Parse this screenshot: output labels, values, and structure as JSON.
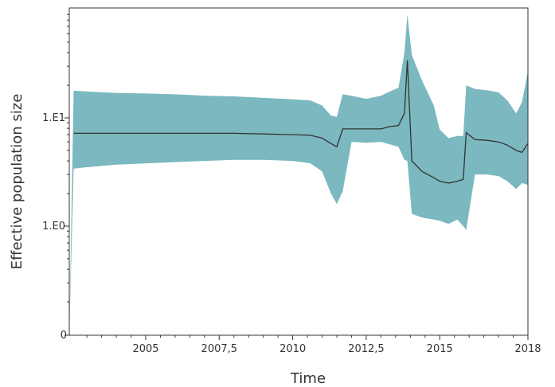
{
  "chart_data": {
    "type": "area",
    "title": "",
    "xlabel": "Time",
    "ylabel": "Effective population size",
    "xlim": [
      2002.4,
      2018
    ],
    "y_scale": "log",
    "y_ticks": [
      {
        "value": 1,
        "label": "1.E0"
      },
      {
        "value": 10,
        "label": "1.E1"
      }
    ],
    "y_zero_label": "0",
    "x_ticks": [
      {
        "value": 2005,
        "label": "2005"
      },
      {
        "value": 2007.5,
        "label": "2007,5"
      },
      {
        "value": 2010,
        "label": "2010"
      },
      {
        "value": 2012.5,
        "label": "2012,5"
      },
      {
        "value": 2015,
        "label": "2015"
      },
      {
        "value": 2018,
        "label": "2018"
      }
    ],
    "grid": false,
    "colors": {
      "band": "#7bb8bf",
      "median": "#333333",
      "axis": "#333333"
    },
    "series": [
      {
        "values": {
          "x": [
            2002.4,
            2002.55,
            2003,
            2004,
            2005,
            2006,
            2007,
            2008,
            2009,
            2010,
            2010.6,
            2011,
            2011.3,
            2011.5,
            2011.7,
            2012,
            2012.5,
            2013,
            2013.3,
            2013.6,
            2013.8,
            2013.9,
            2014.05,
            2014.4,
            2014.8,
            2015,
            2015.3,
            2015.6,
            2015.8,
            2015.9,
            2016.2,
            2016.6,
            2017,
            2017.3,
            2017.6,
            2017.8,
            2018
          ],
          "median": [
            7.2,
            7.2,
            7.2,
            7.2,
            7.2,
            7.2,
            7.2,
            7.2,
            7.1,
            7.0,
            6.9,
            6.5,
            5.8,
            5.4,
            7.9,
            7.9,
            7.9,
            7.9,
            8.3,
            8.5,
            11,
            34,
            4.0,
            3.2,
            2.8,
            2.6,
            2.5,
            2.6,
            2.7,
            7.3,
            6.3,
            6.2,
            6.0,
            5.6,
            5.0,
            4.8,
            5.8
          ],
          "lower": [
            0,
            3.4,
            3.5,
            3.7,
            3.8,
            3.9,
            4.0,
            4.1,
            4.1,
            4.0,
            3.8,
            3.2,
            2.0,
            1.6,
            2.1,
            6.0,
            5.9,
            6.0,
            5.7,
            5.4,
            4.1,
            4.0,
            1.3,
            1.2,
            1.15,
            1.12,
            1.05,
            1.15,
            1.0,
            0.92,
            3.0,
            3.0,
            2.9,
            2.6,
            2.2,
            2.5,
            2.4
          ],
          "upper": [
            0,
            17.8,
            17.5,
            17.0,
            16.8,
            16.5,
            16.0,
            15.8,
            15.3,
            14.8,
            14.5,
            13.0,
            10.5,
            10.2,
            16.5,
            16.0,
            15.0,
            16.0,
            17.5,
            19.0,
            40,
            90,
            38,
            22,
            13,
            7.8,
            6.5,
            6.8,
            6.8,
            20.0,
            18.5,
            18.0,
            17.2,
            14.5,
            11.0,
            14.0,
            27.0
          ]
        }
      }
    ]
  }
}
